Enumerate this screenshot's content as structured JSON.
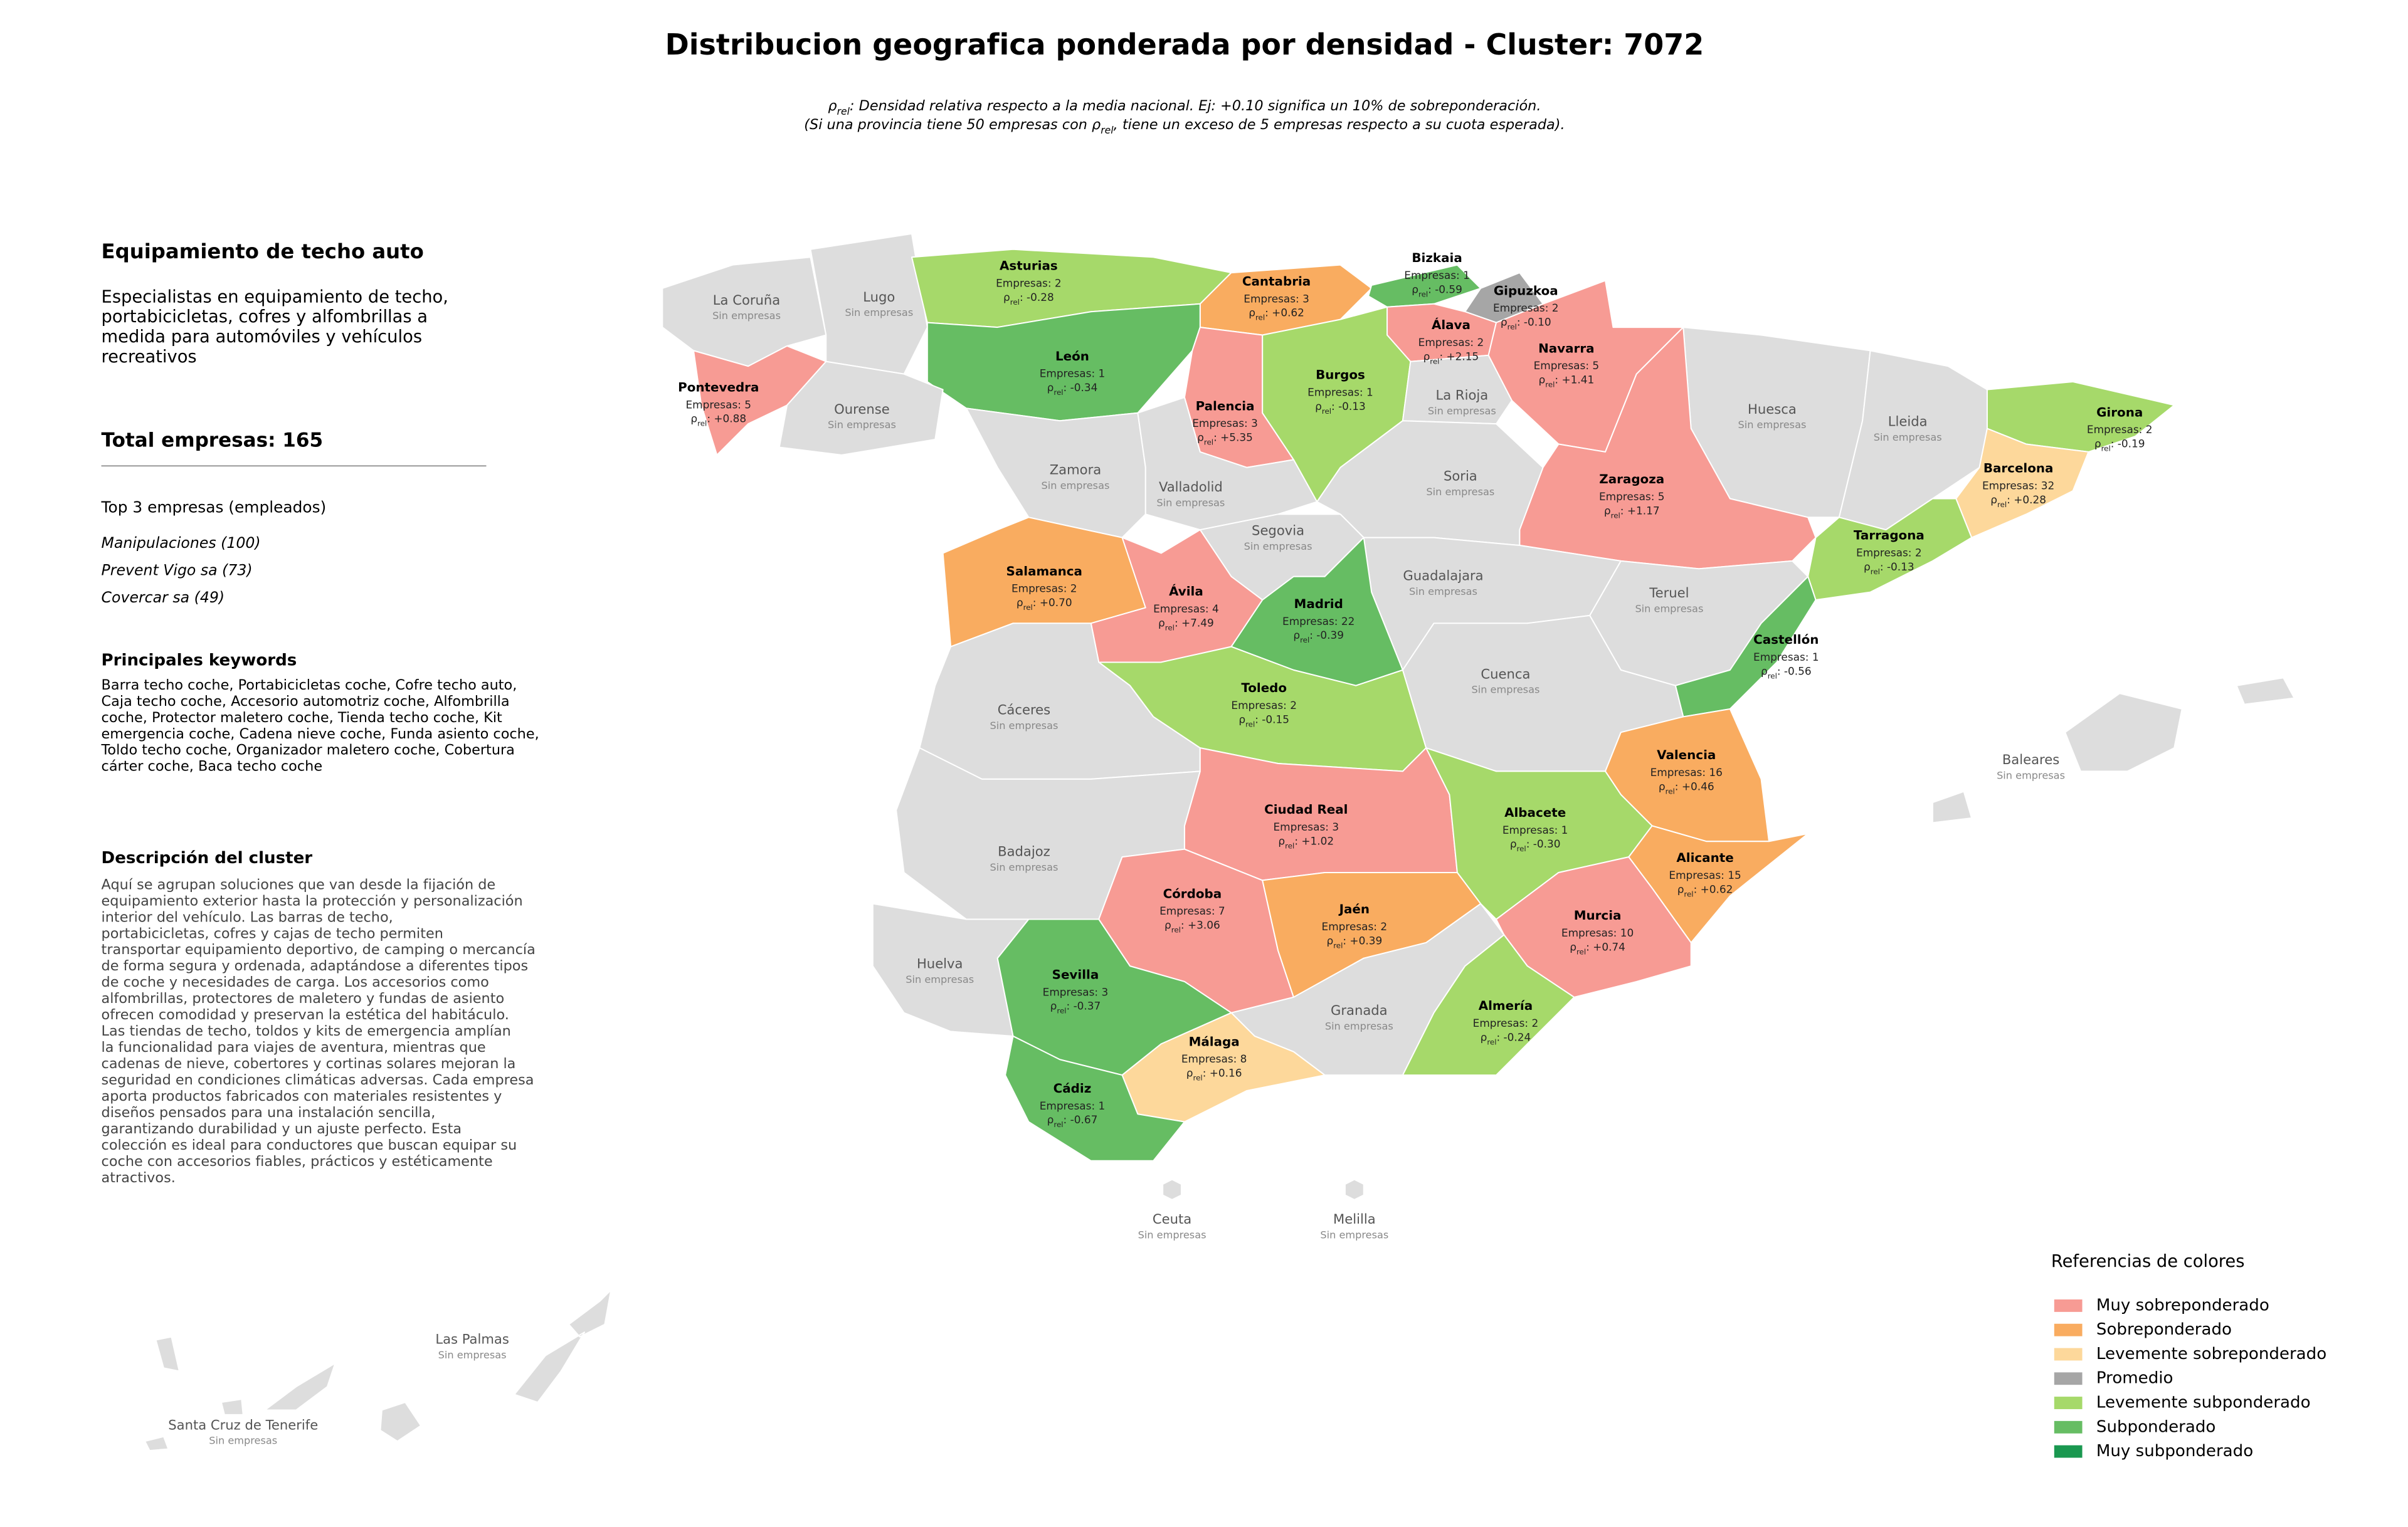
{
  "title": "Distribucion geografica ponderada por densidad - Cluster: 7072",
  "rho_symbol": "ρ",
  "rho_subscript": "rel",
  "subtitle_line1": ": Densidad relativa respecto a la media nacional. Ej: +0.10 significa un 10% de sobreponderación.",
  "subtitle_line2_start": "(Si una provincia tiene 50 empresas con ",
  "subtitle_line2_end": ", tiene un exceso de 5 empresas respecto a su cuota esperada).",
  "panel": {
    "heading": "Equipamiento de techo auto",
    "summary_lines": [
      "Especialistas en equipamiento de techo,",
      "portabicicletas, cofres y alfombrillas a",
      "medida para automóviles y vehículos",
      "recreativos"
    ],
    "total": "Total empresas: 165",
    "top_heading": "Top 3 empresas (empleados)",
    "top_companies": [
      "Manipulaciones (100)",
      "Prevent Vigo sa (73)",
      "Covercar sa (49)"
    ],
    "keywords_heading": "Principales keywords",
    "keywords_lines": [
      "Barra techo coche, Portabicicletas coche, Cofre techo auto,",
      "Caja techo coche, Accesorio automotriz coche, Alfombrilla",
      "coche, Protector maletero coche, Tienda techo coche, Kit",
      "emergencia coche, Cadena nieve coche, Funda asiento coche,",
      "Toldo techo coche, Organizador maletero coche, Cobertura",
      "cárter coche, Baca techo coche"
    ],
    "description_heading": "Descripción del cluster",
    "description_lines": [
      "Aquí se agrupan soluciones que van desde la fijación de",
      "equipamiento exterior hasta la protección y personalización",
      "interior del vehículo. Las barras de techo,",
      "portabicicletas, cofres y cajas de techo permiten",
      "transportar equipamiento deportivo, de camping o mercancía",
      "de forma segura y ordenada, adaptándose a diferentes tipos",
      "de coche y necesidades de carga. Los accesorios como",
      "alfombrillas, protectores de maletero y fundas de asiento",
      "ofrecen comodidad y preservan la estética del habitáculo.",
      "Las tiendas de techo, toldos y kits de emergencia amplían",
      "la funcionalidad para viajes de aventura, mientras que",
      "cadenas de nieve, cobertores y cortinas solares mejoran la",
      "seguridad en condiciones climáticas adversas. Cada empresa",
      "aporta productos fabricados con materiales resistentes y",
      "diseños pensados para una instalación sencilla,",
      "garantizando durabilidad y un ajuste perfecto. Esta",
      "colección es ideal para conductores que buscan equipar su",
      "coche con accesorios fiables, prácticos y estéticamente",
      "atractivos."
    ]
  },
  "empty_color": "#dddddd",
  "legend": {
    "title": "Referencias de colores",
    "items": [
      {
        "name": "Muy sobreponderado",
        "color": "#f79b94"
      },
      {
        "name": "Sobreponderado",
        "color": "#f9ac60"
      },
      {
        "name": "Levemente sobreponderado",
        "color": "#fdd89b"
      },
      {
        "name": "Promedio",
        "color": "#a6a6a6"
      },
      {
        "name": "Levemente subponderado",
        "color": "#a6d96a"
      },
      {
        "name": "Subponderado",
        "color": "#66bd63"
      },
      {
        "name": "Muy subponderado",
        "color": "#1a9850"
      }
    ]
  },
  "provinces": [
    {
      "name": "La Coruña",
      "status": "Sin empresas"
    },
    {
      "name": "Lugo",
      "status": "Sin empresas"
    },
    {
      "name": "Asturias",
      "empresas": "Empresas: 2",
      "rho": ": -0.28",
      "category": 4
    },
    {
      "name": "Cantabria",
      "empresas": "Empresas: 3",
      "rho": ": +0.62",
      "category": 1
    },
    {
      "name": "Bizkaia",
      "empresas": "Empresas: 1",
      "rho": ": -0.59",
      "category": 5
    },
    {
      "name": "Gipuzkoa",
      "empresas": "Empresas: 2",
      "rho": ": -0.10",
      "category": 3
    },
    {
      "name": "Álava",
      "empresas": "Empresas: 2",
      "rho": ": +2.15",
      "category": 0
    },
    {
      "name": "Navarra",
      "empresas": "Empresas: 5",
      "rho": ": +1.41",
      "category": 0
    },
    {
      "name": "León",
      "empresas": "Empresas: 1",
      "rho": ": -0.34",
      "category": 5
    },
    {
      "name": "Pontevedra",
      "empresas": "Empresas: 5",
      "rho": ": +0.88",
      "category": 0
    },
    {
      "name": "Ourense",
      "status": "Sin empresas"
    },
    {
      "name": "Palencia",
      "empresas": "Empresas: 3",
      "rho": ": +5.35",
      "category": 0
    },
    {
      "name": "Burgos",
      "empresas": "Empresas: 1",
      "rho": ": -0.13",
      "category": 4
    },
    {
      "name": "La Rioja",
      "status": "Sin empresas"
    },
    {
      "name": "Huesca",
      "status": "Sin empresas"
    },
    {
      "name": "Lleida",
      "status": "Sin empresas"
    },
    {
      "name": "Girona",
      "empresas": "Empresas: 2",
      "rho": ": -0.19",
      "category": 4
    },
    {
      "name": "Barcelona",
      "empresas": "Empresas: 32",
      "rho": ": +0.28",
      "category": 2
    },
    {
      "name": "Zaragoza",
      "empresas": "Empresas: 5",
      "rho": ": +1.17",
      "category": 0
    },
    {
      "name": "Zamora",
      "status": "Sin empresas"
    },
    {
      "name": "Valladolid",
      "status": "Sin empresas"
    },
    {
      "name": "Soria",
      "status": "Sin empresas"
    },
    {
      "name": "Segovia",
      "status": "Sin empresas"
    },
    {
      "name": "Tarragona",
      "empresas": "Empresas: 2",
      "rho": ": -0.13",
      "category": 4
    },
    {
      "name": "Salamanca",
      "empresas": "Empresas: 2",
      "rho": ": +0.70",
      "category": 1
    },
    {
      "name": "Guadalajara",
      "status": "Sin empresas"
    },
    {
      "name": "Teruel",
      "status": "Sin empresas"
    },
    {
      "name": "Ávila",
      "empresas": "Empresas: 4",
      "rho": ": +7.49",
      "category": 0
    },
    {
      "name": "Madrid",
      "empresas": "Empresas: 22",
      "rho": ": -0.39",
      "category": 5
    },
    {
      "name": "Castellón",
      "empresas": "Empresas: 1",
      "rho": ": -0.56",
      "category": 5
    },
    {
      "name": "Toledo",
      "empresas": "Empresas: 2",
      "rho": ": -0.15",
      "category": 4
    },
    {
      "name": "Cuenca",
      "status": "Sin empresas"
    },
    {
      "name": "Cáceres",
      "status": "Sin empresas"
    },
    {
      "name": "Valencia",
      "empresas": "Empresas: 16",
      "rho": ": +0.46",
      "category": 1
    },
    {
      "name": "Ciudad Real",
      "empresas": "Empresas: 3",
      "rho": ": +1.02",
      "category": 0
    },
    {
      "name": "Albacete",
      "empresas": "Empresas: 1",
      "rho": ": -0.30",
      "category": 4
    },
    {
      "name": "Badajoz",
      "status": "Sin empresas"
    },
    {
      "name": "Alicante",
      "empresas": "Empresas: 15",
      "rho": ": +0.62",
      "category": 1
    },
    {
      "name": "Córdoba",
      "empresas": "Empresas: 7",
      "rho": ": +3.06",
      "category": 0
    },
    {
      "name": "Jaén",
      "empresas": "Empresas: 2",
      "rho": ": +0.39",
      "category": 1
    },
    {
      "name": "Murcia",
      "empresas": "Empresas: 10",
      "rho": ": +0.74",
      "category": 0
    },
    {
      "name": "Huelva",
      "status": "Sin empresas"
    },
    {
      "name": "Sevilla",
      "empresas": "Empresas: 3",
      "rho": ": -0.37",
      "category": 5
    },
    {
      "name": "Granada",
      "status": "Sin empresas"
    },
    {
      "name": "Almería",
      "empresas": "Empresas: 2",
      "rho": ": -0.24",
      "category": 4
    },
    {
      "name": "Málaga",
      "empresas": "Empresas: 8",
      "rho": ": +0.16",
      "category": 2
    },
    {
      "name": "Cádiz",
      "empresas": "Empresas: 1",
      "rho": ": -0.67",
      "category": 5
    },
    {
      "name": "Baleares",
      "status": "Sin empresas"
    },
    {
      "name": "Ceuta",
      "status": "Sin empresas"
    },
    {
      "name": "Melilla",
      "status": "Sin empresas"
    },
    {
      "name": "Las Palmas",
      "status": "Sin empresas"
    },
    {
      "name": "Santa Cruz de Tenerife",
      "status": "Sin empresas"
    }
  ]
}
